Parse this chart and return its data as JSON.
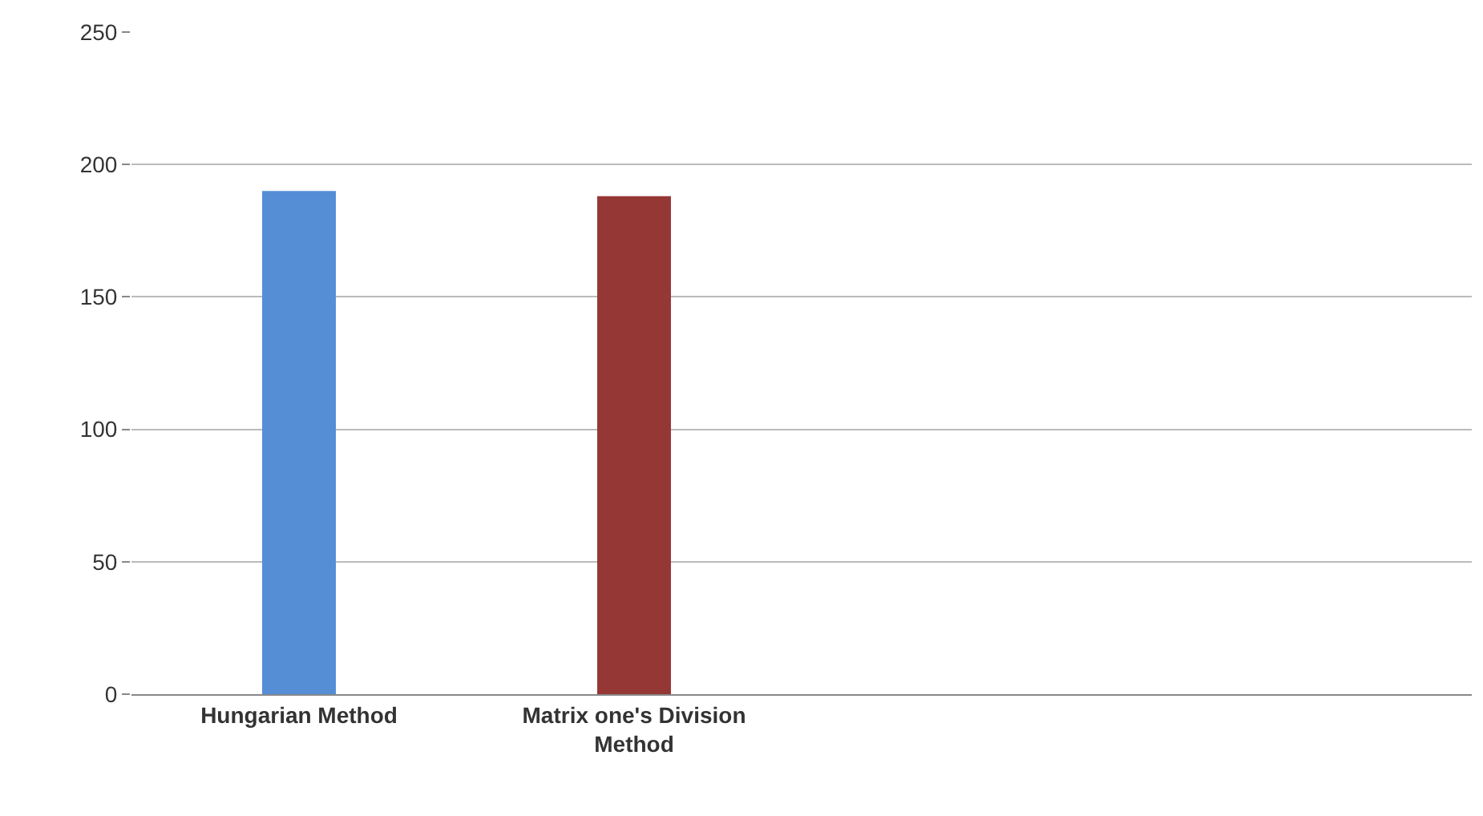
{
  "chart_data": {
    "type": "bar",
    "categories": [
      "Hungarian Method",
      "Matrix one's Division Method",
      null,
      null
    ],
    "values": [
      190,
      188,
      null,
      null
    ],
    "colors": [
      "#558ed5",
      "#953735",
      "#558ed5",
      "#953735"
    ],
    "ylim": [
      0,
      250
    ],
    "yticks": [
      0,
      50,
      100,
      150,
      200,
      250
    ],
    "grid": "y",
    "legend": false
  }
}
